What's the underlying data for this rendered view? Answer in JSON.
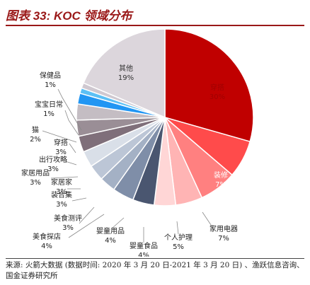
{
  "header": {
    "figure_label": "图表 33:",
    "title": "KOC 领域分布"
  },
  "source": {
    "text": "来源: 火箭大数据 (数据时间: 2020 年 3 月 20 日-2021 年 3 月 20 日) 、渔跃信息咨询、国金证券研究所"
  },
  "colors": {
    "title": "#9a1818",
    "rule": "#9a1818"
  },
  "chart_data": {
    "type": "pie",
    "start_angle_deg": 0,
    "direction": "clockwise",
    "slices": [
      {
        "name": "穿搭",
        "value": 30,
        "pct_label": "30%",
        "color": "#c00000"
      },
      {
        "name": "装修",
        "value": 7,
        "pct_label": "7%",
        "color": "#ff4b4b"
      },
      {
        "name": "家用电器",
        "value": 7,
        "pct_label": "7%",
        "color": "#ff8080"
      },
      {
        "name": "个人护理",
        "value": 5,
        "pct_label": "5%",
        "color": "#ffb4b4"
      },
      {
        "name": "婴童食品",
        "value": 4,
        "pct_label": "4%",
        "color": "#ffd6d6"
      },
      {
        "name": "婴童用品",
        "value": 4,
        "pct_label": "4%",
        "color": "#4a5670"
      },
      {
        "name": "美食探店",
        "value": 4,
        "pct_label": "4%",
        "color": "#7f8ea8"
      },
      {
        "name": "美食测评",
        "value": 3,
        "pct_label": "3%",
        "color": "#a4b1c5"
      },
      {
        "name": "装合集",
        "value": 3,
        "pct_label": "3%",
        "color": "#bcc6d6"
      },
      {
        "name": "家居家",
        "value": 3,
        "pct_label": "3%",
        "color": "#d9dfe8"
      },
      {
        "name": "家居用品",
        "value": 3,
        "pct_label": "3%",
        "color": "#7f6f7a"
      },
      {
        "name": "出行攻略",
        "value": 3,
        "pct_label": "3%",
        "color": "#9a8e96"
      },
      {
        "name": "穿搭",
        "value": 3,
        "pct_label": "3%",
        "color": "#c4bdc3"
      },
      {
        "name": "猫",
        "value": 2,
        "pct_label": "2%",
        "color": "#2196f3"
      },
      {
        "name": "宝宝日常",
        "value": 1,
        "pct_label": "1%",
        "color": "#5cc0f5"
      },
      {
        "name": "保健品",
        "value": 1,
        "pct_label": "1%",
        "color": "#cfc8d0"
      },
      {
        "name": "其他",
        "value": 19,
        "pct_label": "19%",
        "color": "#dcd6dc"
      }
    ]
  }
}
